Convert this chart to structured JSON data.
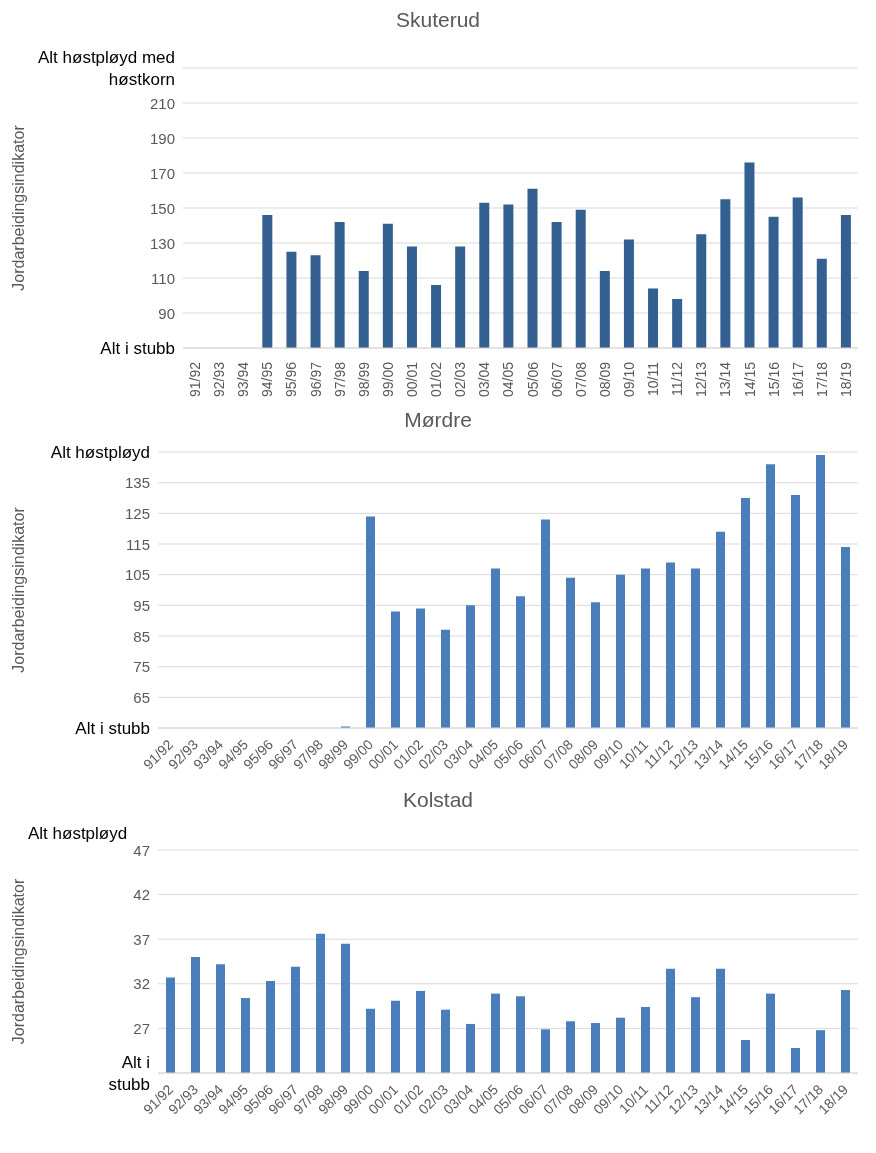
{
  "chart_data": [
    {
      "type": "bar",
      "title": "Skuterud",
      "ylabel": "Jordarbeidingsindikator",
      "color": "#335f91",
      "grid": "y",
      "legend": false,
      "categories": [
        "91/92",
        "92/93",
        "93/94",
        "94/95",
        "95/96",
        "96/97",
        "97/98",
        "98/99",
        "99/00",
        "00/01",
        "01/02",
        "02/03",
        "03/04",
        "04/05",
        "05/06",
        "06/07",
        "07/08",
        "08/09",
        "09/10",
        "10/11",
        "11/12",
        "12/13",
        "13/14",
        "14/15",
        "15/16",
        "16/17",
        "17/18",
        "18/19"
      ],
      "values": [
        null,
        null,
        null,
        146,
        125,
        123,
        142,
        114,
        141,
        128,
        106,
        128,
        153,
        152,
        161,
        142,
        149,
        114,
        132,
        104,
        98,
        135,
        155,
        176,
        145,
        156,
        121,
        146
      ],
      "ylim": [
        70,
        230
      ],
      "yticks": [
        {
          "value": 70,
          "label": "Alt i stubb"
        },
        90,
        110,
        130,
        150,
        170,
        190,
        210,
        {
          "value": 230,
          "label": "Alt høstpløyd med høstkorn"
        }
      ]
    },
    {
      "type": "bar",
      "title": "Mørdre",
      "ylabel": "Jordarbeidingsindikator",
      "color": "#4a7ebb",
      "grid": "y",
      "legend": false,
      "categories": [
        "91/92",
        "92/93",
        "93/94",
        "94/95",
        "95/96",
        "96/97",
        "97/98",
        "98/99",
        "99/00",
        "00/01",
        "01/02",
        "02/03",
        "03/04",
        "04/05",
        "05/06",
        "06/07",
        "07/08",
        "08/09",
        "09/10",
        "10/11",
        "11/12",
        "12/13",
        "13/14",
        "14/15",
        "15/16",
        "16/17",
        "17/18",
        "18/19"
      ],
      "values": [
        null,
        null,
        null,
        null,
        null,
        null,
        null,
        55.5,
        124,
        93,
        94,
        87,
        95,
        107,
        98,
        123,
        104,
        96,
        105,
        107,
        109,
        107,
        119,
        130,
        141,
        131,
        144,
        114
      ],
      "ylim": [
        55,
        145
      ],
      "yticks": [
        {
          "value": 55,
          "label": "Alt i stubb"
        },
        65,
        75,
        85,
        95,
        105,
        115,
        125,
        135,
        {
          "value": 145,
          "label": "Alt høstpløyd"
        }
      ]
    },
    {
      "type": "bar",
      "title": "Kolstad",
      "ylabel": "Jordarbeidingsindikator",
      "color": "#4a7ebb",
      "grid": "y",
      "legend": false,
      "annotations": [
        "Alt høstpløyd"
      ],
      "categories": [
        "91/92",
        "92/93",
        "93/94",
        "94/95",
        "95/96",
        "96/97",
        "97/98",
        "98/99",
        "99/00",
        "00/01",
        "01/02",
        "02/03",
        "03/04",
        "04/05",
        "05/06",
        "06/07",
        "07/08",
        "08/09",
        "09/10",
        "10/11",
        "11/12",
        "12/13",
        "13/14",
        "14/15",
        "15/16",
        "16/17",
        "17/18",
        "18/19"
      ],
      "values": [
        32.7,
        35.0,
        34.2,
        30.4,
        32.3,
        33.9,
        37.6,
        36.5,
        29.2,
        30.1,
        31.2,
        29.1,
        27.5,
        30.9,
        30.6,
        26.9,
        27.8,
        27.6,
        28.2,
        29.4,
        33.7,
        30.5,
        33.7,
        25.7,
        30.9,
        24.8,
        26.8,
        31.3
      ],
      "ylim": [
        22,
        47
      ],
      "yticks": [
        {
          "value": 22,
          "label": "Alt i stubb"
        },
        27,
        32,
        37,
        42,
        47
      ]
    }
  ]
}
